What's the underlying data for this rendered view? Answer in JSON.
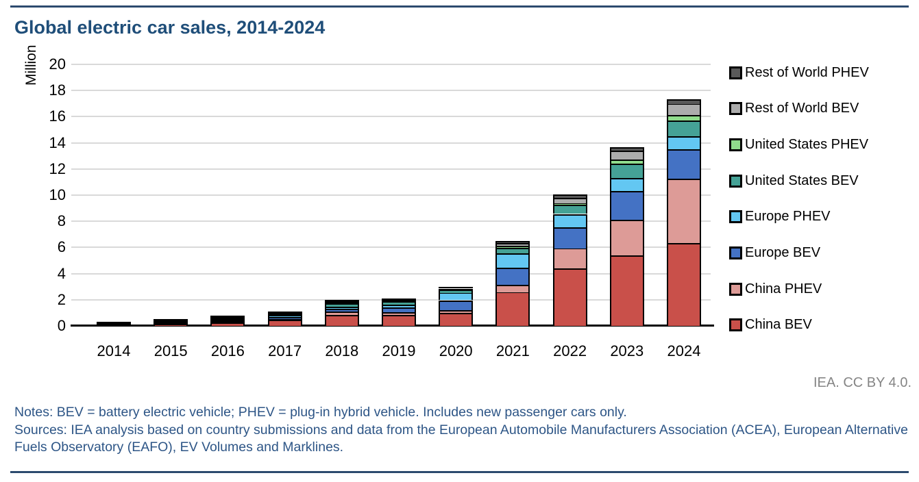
{
  "page": {
    "title": "Global electric car sales, 2014-2024",
    "attribution": "IEA. CC BY 4.0.",
    "notes_line1": "Notes: BEV = battery electric vehicle; PHEV = plug-in hybrid vehicle. Includes new passenger cars only.",
    "notes_line2": "Sources: IEA analysis based on country submissions and data from the European Automobile Manufacturers Association (ACEA), European Alternative Fuels Observatory (EAFO), EV Volumes and Marklines."
  },
  "colors": {
    "accent_rule": "#2C4A6E",
    "title_text": "#1F4E79",
    "notes_text": "#2D5586",
    "attribution_text": "#858585",
    "gridline": "#D9D9D9",
    "axis": "#000000",
    "segment_border": "#000000"
  },
  "chart_data": {
    "type": "bar",
    "stacked": true,
    "title": "Global electric car sales, 2014-2024",
    "xlabel": "",
    "ylabel": "Million",
    "ylim": [
      0,
      20
    ],
    "y_ticks": [
      0,
      2,
      4,
      6,
      8,
      10,
      12,
      14,
      16,
      18,
      20
    ],
    "grid": "horizontal",
    "legend_position": "right",
    "legend_order": "top-is-last-series",
    "categories": [
      "2014",
      "2015",
      "2016",
      "2017",
      "2018",
      "2019",
      "2020",
      "2021",
      "2022",
      "2023",
      "2024"
    ],
    "series": [
      {
        "name": "China BEV",
        "color": "#C9504A",
        "values": [
          0.04,
          0.15,
          0.26,
          0.45,
          0.82,
          0.83,
          0.97,
          2.6,
          4.4,
          5.4,
          6.35
        ]
      },
      {
        "name": "China PHEV",
        "color": "#DD9B97",
        "values": [
          0.03,
          0.06,
          0.08,
          0.11,
          0.27,
          0.23,
          0.23,
          0.55,
          1.55,
          2.7,
          4.9
        ]
      },
      {
        "name": "Europe BEV",
        "color": "#4472C4",
        "values": [
          0.06,
          0.09,
          0.09,
          0.14,
          0.2,
          0.36,
          0.75,
          1.3,
          1.6,
          2.2,
          2.25
        ]
      },
      {
        "name": "Europe PHEV",
        "color": "#63C7F2",
        "values": [
          0.04,
          0.08,
          0.11,
          0.14,
          0.18,
          0.2,
          0.6,
          1.1,
          1.0,
          1.0,
          1.0
        ]
      },
      {
        "name": "United States BEV",
        "color": "#45A296",
        "values": [
          0.06,
          0.06,
          0.09,
          0.1,
          0.24,
          0.25,
          0.24,
          0.4,
          0.7,
          1.1,
          1.2
        ]
      },
      {
        "name": "United States PHEV",
        "color": "#90DC8C",
        "values": [
          0.05,
          0.04,
          0.07,
          0.09,
          0.12,
          0.08,
          0.06,
          0.18,
          0.15,
          0.3,
          0.4
        ]
      },
      {
        "name": "Rest of World BEV",
        "color": "#ACACAC",
        "values": [
          0.03,
          0.03,
          0.04,
          0.05,
          0.1,
          0.1,
          0.13,
          0.2,
          0.4,
          0.7,
          0.9
        ]
      },
      {
        "name": "Rest of World PHEV",
        "color": "#595959",
        "values": [
          0.01,
          0.01,
          0.02,
          0.03,
          0.04,
          0.05,
          0.03,
          0.15,
          0.25,
          0.25,
          0.35
        ]
      }
    ],
    "totals": [
      0.32,
      0.52,
      0.76,
      1.11,
      1.97,
      2.1,
      3.01,
      6.48,
      10.05,
      13.65,
      17.35
    ]
  }
}
